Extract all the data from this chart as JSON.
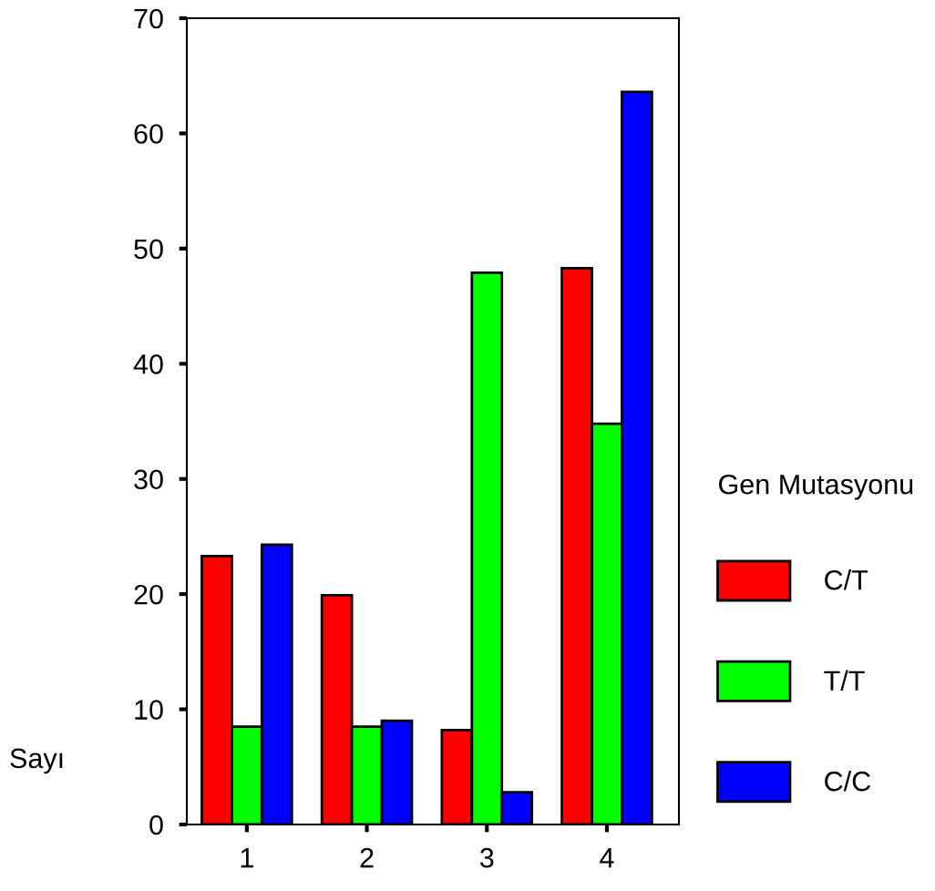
{
  "chart_data": {
    "type": "bar",
    "ylabel": "Sayı",
    "legend_title": "Gen Mutasyonu",
    "categories": [
      "1",
      "2",
      "3",
      "4"
    ],
    "series": [
      {
        "name": "C/T",
        "color": "#ff0000",
        "values": [
          23.3,
          19.9,
          8.2,
          48.3
        ]
      },
      {
        "name": "T/T",
        "color": "#00ff00",
        "values": [
          8.5,
          8.5,
          47.9,
          34.8
        ]
      },
      {
        "name": "C/C",
        "color": "#0000ff",
        "values": [
          24.3,
          9.0,
          2.8,
          63.6
        ]
      }
    ],
    "ylim": [
      0,
      70
    ],
    "yticks": [
      0,
      10,
      20,
      30,
      40,
      50,
      60,
      70
    ],
    "grid": false,
    "legend": "right"
  }
}
